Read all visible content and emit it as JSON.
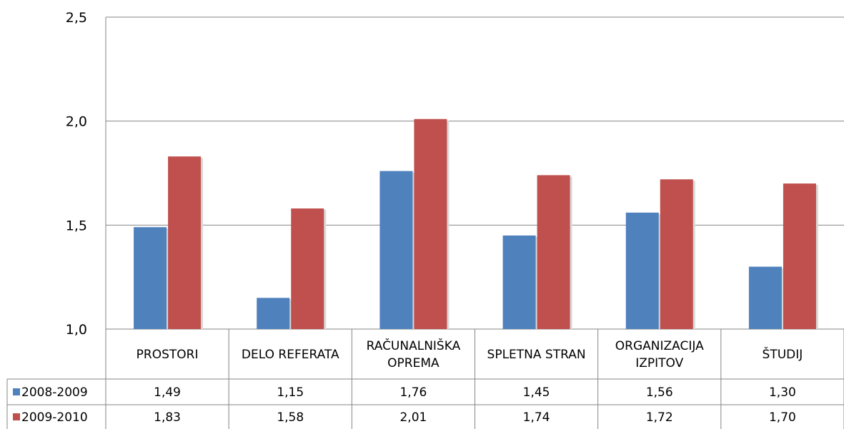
{
  "chart_data": {
    "type": "bar",
    "categories": [
      [
        "PROSTORI"
      ],
      [
        "DELO REFERATA"
      ],
      [
        "RAČUNALNIŠKA",
        "OPREMA"
      ],
      [
        "SPLETNA STRAN"
      ],
      [
        "ORGANIZACIJA",
        "IZPITOV"
      ],
      [
        "ŠTUDIJ"
      ]
    ],
    "series": [
      {
        "name": "2008-2009",
        "color": "#4F81BD",
        "values": [
          1.49,
          1.15,
          1.76,
          1.45,
          1.56,
          1.3
        ],
        "labels": [
          "1,49",
          "1,15",
          "1,76",
          "1,45",
          "1,56",
          "1,30"
        ]
      },
      {
        "name": "2009-2010",
        "color": "#C0504D",
        "values": [
          1.83,
          1.58,
          2.01,
          1.74,
          1.72,
          1.7
        ],
        "labels": [
          "1,83",
          "1,58",
          "2,01",
          "1,74",
          "1,72",
          "1,70"
        ]
      }
    ],
    "yticks": [
      1.0,
      1.5,
      2.0,
      2.5
    ],
    "ytick_labels": [
      "1,0",
      "1,5",
      "2,0",
      "2,5"
    ],
    "ylim": [
      1.0,
      2.5
    ],
    "grid": true,
    "legend": "data-table"
  }
}
